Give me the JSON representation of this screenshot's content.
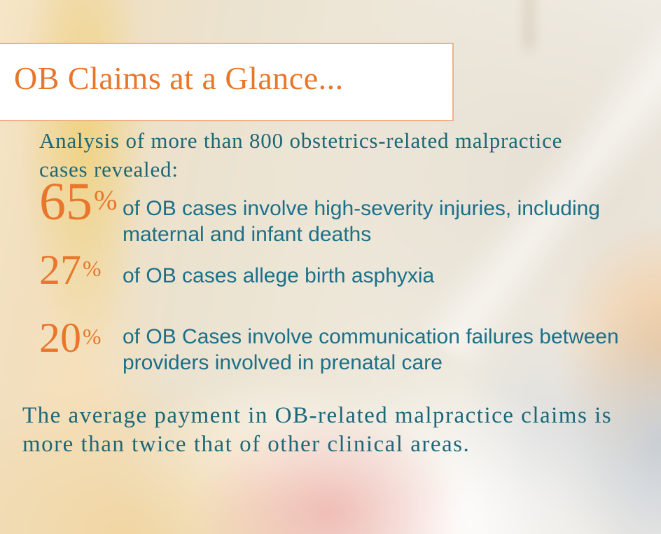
{
  "title": "OB Claims at a Glance...",
  "intro": "Analysis of more than 800 obstetrics-related malpractice\ncases revealed:",
  "stats": [
    {
      "value": "65",
      "unit": "%",
      "text": "of OB cases involve high-severity injuries, including\nmaternal and infant deaths"
    },
    {
      "value": "27",
      "unit": "%",
      "text": "of OB cases allege birth asphyxia"
    },
    {
      "value": "20",
      "unit": "%",
      "text": "of OB Cases involve communication failures between\nproviders involved in prenatal care"
    }
  ],
  "footer": "The average payment in OB-related malpractice claims is\nmore than twice that of other clinical areas.",
  "colors": {
    "accent_orange": "#E8762B",
    "box_border_orange": "#F3B183",
    "serif_teal": "#1C6878",
    "sans_teal": "#1B7089",
    "box_background": "#FFFFFF"
  }
}
